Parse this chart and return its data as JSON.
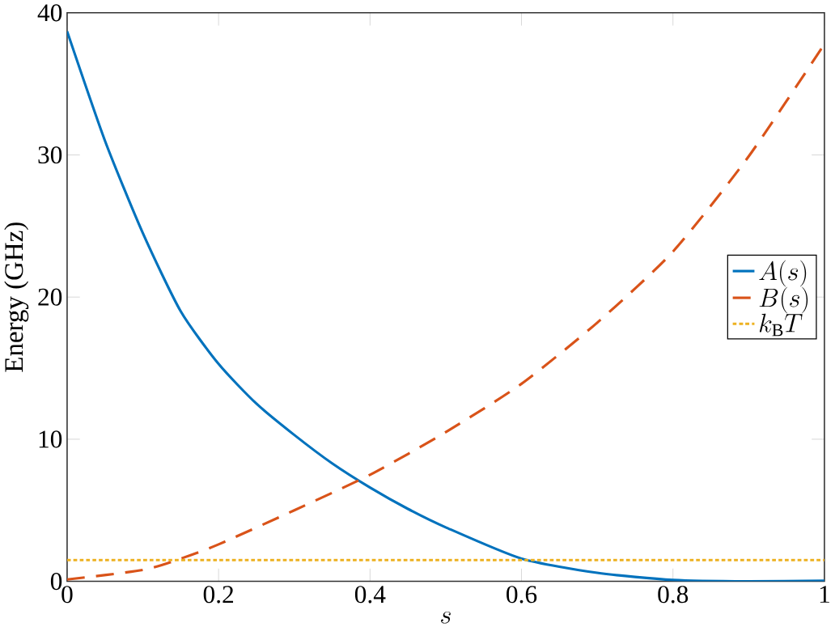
{
  "chart_data": {
    "type": "line",
    "xlabel": "s",
    "ylabel": "Energy (GHz)",
    "xlim": [
      0,
      1
    ],
    "ylim": [
      0,
      40
    ],
    "xticks": [
      0,
      0.2,
      0.4,
      0.6,
      0.8,
      1
    ],
    "yticks": [
      0,
      10,
      20,
      30,
      40
    ],
    "grid": false,
    "legend": "right",
    "marker": "none",
    "series": [
      {
        "name": "A(s)",
        "color": "#0072bd",
        "line_style": "solid",
        "x": [
          0,
          0.05,
          0.1,
          0.15,
          0.2,
          0.25,
          0.3,
          0.35,
          0.4,
          0.45,
          0.5,
          0.6,
          0.7,
          0.8,
          0.9,
          1
        ],
        "values": [
          38.7,
          31,
          24.5,
          19,
          15.3,
          12.5,
          10.3,
          8.3,
          6.6,
          5.1,
          3.8,
          1.6,
          0.6,
          0.1,
          0,
          0.05
        ]
      },
      {
        "name": "B(s)",
        "color": "#d95319",
        "line_style": "dashed",
        "x": [
          0,
          0.1,
          0.15,
          0.2,
          0.3,
          0.4,
          0.5,
          0.6,
          0.7,
          0.8,
          0.9,
          1
        ],
        "values": [
          0.13,
          0.8,
          1.6,
          2.6,
          5.0,
          7.5,
          10.5,
          13.9,
          18.2,
          23.2,
          29.9,
          37.8
        ]
      },
      {
        "name": "k_{\\mathrm{B}}T",
        "color": "#edb120",
        "line_style": "dotted",
        "x": [
          0,
          1
        ],
        "values": [
          1.5,
          1.5
        ]
      }
    ]
  }
}
